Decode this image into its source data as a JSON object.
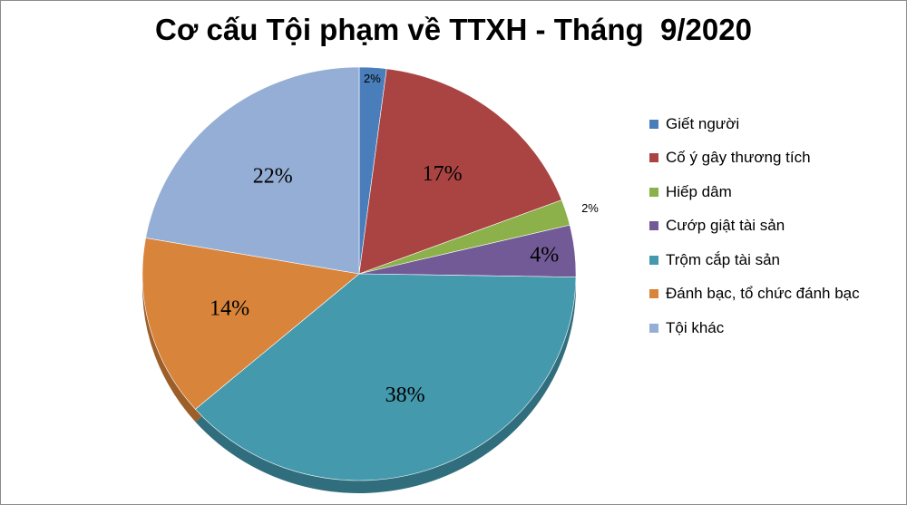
{
  "chart_data": {
    "type": "pie",
    "title": "Cơ cấu Tội phạm về TTXH - Tháng  9/2020",
    "legend_position": "right",
    "slices": [
      {
        "label": "Giết người",
        "value": 2,
        "display": "2%",
        "color": "#4a7ebb"
      },
      {
        "label": "Cố  ý gây thương tích",
        "value": 17,
        "display": "17%",
        "color": "#a94442"
      },
      {
        "label": "Hiếp dâm",
        "value": 2,
        "display": "2%",
        "color": "#8cb04a"
      },
      {
        "label": "Cướp giật tài sản",
        "value": 4,
        "display": "4%",
        "color": "#725a96"
      },
      {
        "label": "Trộm cắp tài sản",
        "value": 38,
        "display": "38%",
        "color": "#4499ad"
      },
      {
        "label": "Đánh bạc, tổ chức đánh bạc",
        "value": 14,
        "display": "14%",
        "color": "#d9843b"
      },
      {
        "label": "Tội khác",
        "value": 22,
        "display": "22%",
        "color": "#95aed5"
      }
    ]
  }
}
